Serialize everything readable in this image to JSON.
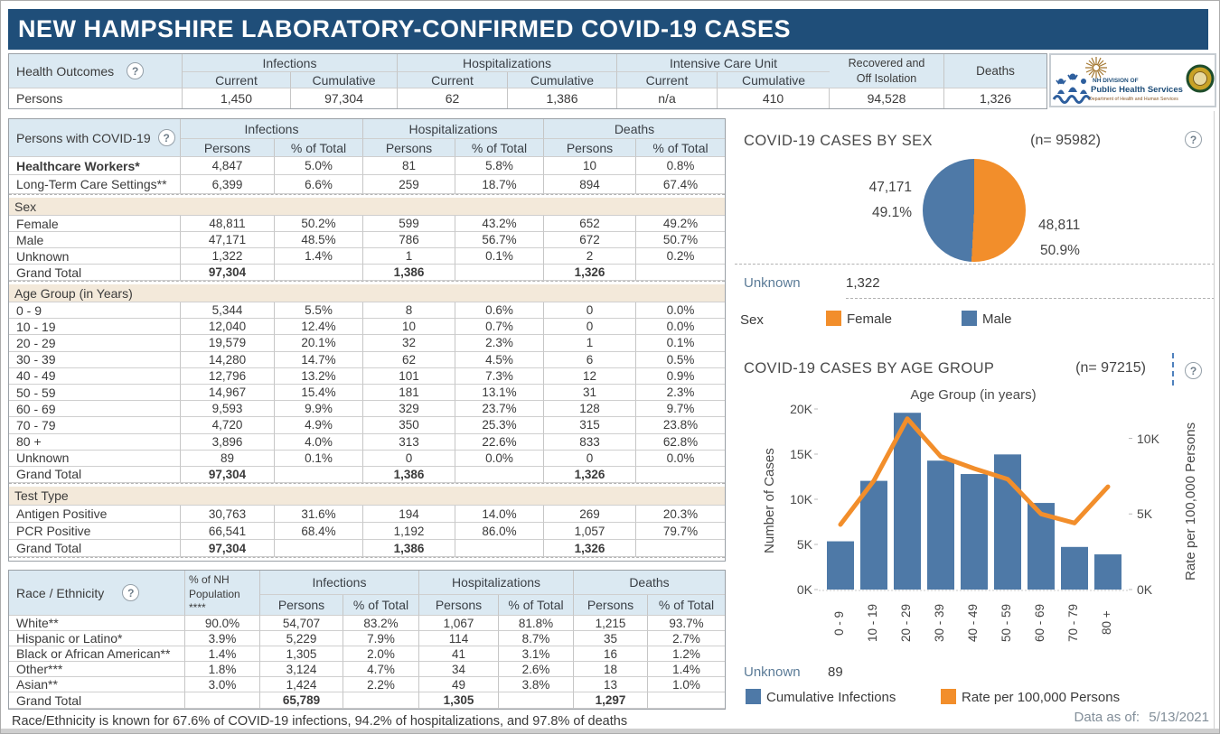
{
  "title": "NEW HAMPSHIRE LABORATORY-CONFIRMED COVID-19 CASES",
  "icons": {
    "help": "?"
  },
  "health_outcomes": {
    "label": "Health Outcomes",
    "groups": [
      "Infections",
      "Hospitalizations",
      "Intensive Care Unit"
    ],
    "sub": [
      "Current",
      "Cumulative"
    ],
    "recovered_label_lines": [
      "Recovered and",
      "Off Isolation"
    ],
    "deaths_label": "Deaths",
    "row_label": "Persons",
    "values": [
      "1,450",
      "97,304",
      "62",
      "1,386",
      "n/a",
      "410",
      "94,528",
      "1,326"
    ]
  },
  "logo": {
    "line1": "NH DIVISION OF",
    "line2": "Public Health Services",
    "line3": "Department of Health and Human Services"
  },
  "persons_table": {
    "label": "Persons with COVID-19",
    "groups": [
      "Infections",
      "Hospitalizations",
      "Deaths"
    ],
    "sub": [
      "Persons",
      "% of Total"
    ],
    "rows": [
      {
        "label": "Healthcare Workers*",
        "bold": true,
        "cells": [
          "4,847",
          "5.0%",
          "81",
          "5.8%",
          "10",
          "0.8%"
        ]
      },
      {
        "label": "Long-Term Care Settings**",
        "cells": [
          "6,399",
          "6.6%",
          "259",
          "18.7%",
          "894",
          "67.4%"
        ],
        "sep": true
      },
      {
        "section": "Sex"
      },
      {
        "label": "Female",
        "cells": [
          "48,811",
          "50.2%",
          "599",
          "43.2%",
          "652",
          "49.2%"
        ]
      },
      {
        "label": "Male",
        "cells": [
          "47,171",
          "48.5%",
          "786",
          "56.7%",
          "672",
          "50.7%"
        ]
      },
      {
        "label": "Unknown",
        "cells": [
          "1,322",
          "1.4%",
          "1",
          "0.1%",
          "2",
          "0.2%"
        ]
      },
      {
        "label": "Grand Total",
        "total": true,
        "cells": [
          "97,304",
          "",
          "1,386",
          "",
          "1,326",
          ""
        ],
        "sep": true
      },
      {
        "section": "Age Group (in Years)"
      },
      {
        "label": "0 - 9",
        "cells": [
          "5,344",
          "5.5%",
          "8",
          "0.6%",
          "0",
          "0.0%"
        ]
      },
      {
        "label": "10 - 19",
        "cells": [
          "12,040",
          "12.4%",
          "10",
          "0.7%",
          "0",
          "0.0%"
        ]
      },
      {
        "label": "20 - 29",
        "cells": [
          "19,579",
          "20.1%",
          "32",
          "2.3%",
          "1",
          "0.1%"
        ]
      },
      {
        "label": "30 - 39",
        "cells": [
          "14,280",
          "14.7%",
          "62",
          "4.5%",
          "6",
          "0.5%"
        ]
      },
      {
        "label": "40 - 49",
        "cells": [
          "12,796",
          "13.2%",
          "101",
          "7.3%",
          "12",
          "0.9%"
        ]
      },
      {
        "label": "50 - 59",
        "cells": [
          "14,967",
          "15.4%",
          "181",
          "13.1%",
          "31",
          "2.3%"
        ]
      },
      {
        "label": "60 - 69",
        "cells": [
          "9,593",
          "9.9%",
          "329",
          "23.7%",
          "128",
          "9.7%"
        ]
      },
      {
        "label": "70 - 79",
        "cells": [
          "4,720",
          "4.9%",
          "350",
          "25.3%",
          "315",
          "23.8%"
        ]
      },
      {
        "label": "80 +",
        "cells": [
          "3,896",
          "4.0%",
          "313",
          "22.6%",
          "833",
          "62.8%"
        ]
      },
      {
        "label": "Unknown",
        "cells": [
          "89",
          "0.1%",
          "0",
          "0.0%",
          "0",
          "0.0%"
        ]
      },
      {
        "label": "Grand Total",
        "total": true,
        "cells": [
          "97,304",
          "",
          "1,386",
          "",
          "1,326",
          ""
        ],
        "sep": true
      },
      {
        "section": "Test Type"
      },
      {
        "label": "Antigen Positive",
        "cells": [
          "30,763",
          "31.6%",
          "194",
          "14.0%",
          "269",
          "20.3%"
        ]
      },
      {
        "label": "PCR Positive",
        "cells": [
          "66,541",
          "68.4%",
          "1,192",
          "86.0%",
          "1,057",
          "79.7%"
        ]
      },
      {
        "label": "Grand Total",
        "total": true,
        "cells": [
          "97,304",
          "",
          "1,386",
          "",
          "1,326",
          ""
        ],
        "sep": true
      }
    ]
  },
  "race_table": {
    "label": "Race / Ethnicity",
    "pop_header_lines": [
      "% of NH",
      "Population",
      "****"
    ],
    "groups": [
      "Infections",
      "Hospitalizations",
      "Deaths"
    ],
    "sub": [
      "Persons",
      "% of Total"
    ],
    "rows": [
      {
        "label": "White**",
        "cells": [
          "90.0%",
          "54,707",
          "83.2%",
          "1,067",
          "81.8%",
          "1,215",
          "93.7%"
        ]
      },
      {
        "label": "Hispanic or Latino*",
        "cells": [
          "3.9%",
          "5,229",
          "7.9%",
          "114",
          "8.7%",
          "35",
          "2.7%"
        ]
      },
      {
        "label": "Black or African American**",
        "cells": [
          "1.4%",
          "1,305",
          "2.0%",
          "41",
          "3.1%",
          "16",
          "1.2%"
        ]
      },
      {
        "label": "Other***",
        "cells": [
          "1.8%",
          "3,124",
          "4.7%",
          "34",
          "2.6%",
          "18",
          "1.4%"
        ]
      },
      {
        "label": "Asian**",
        "cells": [
          "3.0%",
          "1,424",
          "2.2%",
          "49",
          "3.8%",
          "13",
          "1.0%"
        ]
      },
      {
        "label": "Grand Total",
        "total": true,
        "cells": [
          "",
          "65,789",
          "",
          "1,305",
          "",
          "1,297",
          ""
        ]
      }
    ]
  },
  "footnote": "Race/Ethnicity is known for 67.6% of COVID-19 infections, 94.2% of hospitalizations, and 97.8% of deaths",
  "data_as_of": {
    "label": "Data as of:",
    "value": "5/13/2021"
  },
  "chart_data": [
    {
      "type": "pie",
      "title": "COVID-19 CASES BY SEX",
      "n_label": "(n= 95982)",
      "slices": [
        {
          "label": "Female",
          "value": 48811,
          "value_text": "48,811",
          "pct_text": "50.9%",
          "color": "#f28e2b"
        },
        {
          "label": "Male",
          "value": 47171,
          "value_text": "47,171",
          "pct_text": "49.1%",
          "color": "#4e79a7"
        }
      ],
      "unknown_label": "Unknown",
      "unknown_value": "1,322",
      "legend_title": "Sex",
      "legend_position": "bottom"
    },
    {
      "type": "bar+line",
      "title": "COVID-19 CASES BY AGE GROUP",
      "n_label": "(n= 97215)",
      "axis_title": "Age Group (in years)",
      "categories": [
        "0 - 9",
        "10 - 19",
        "20 - 29",
        "30 - 39",
        "40 - 49",
        "50 - 59",
        "60 - 69",
        "70 - 79",
        "80 +"
      ],
      "series": [
        {
          "name": "Cumulative Infections",
          "type": "bar",
          "color": "#4e79a7",
          "values": [
            5344,
            12040,
            19579,
            14280,
            12796,
            14967,
            9593,
            4720,
            3896
          ]
        },
        {
          "name": "Rate per 100,000 Persons",
          "type": "line",
          "color": "#f28e2b",
          "values": [
            4300,
            7200,
            11300,
            8800,
            8000,
            7300,
            5000,
            4400,
            6800
          ]
        }
      ],
      "ylabel_left": "Number of Cases",
      "ylabel_right": "Rate per 100,000 Persons",
      "yticks_left": [
        "0K",
        "5K",
        "10K",
        "15K",
        "20K"
      ],
      "yticks_right": [
        "0K",
        "5K",
        "10K"
      ],
      "ylim_left": [
        0,
        20000
      ],
      "ylim_right": [
        0,
        11700
      ],
      "grid": false,
      "unknown_label": "Unknown",
      "unknown_value": "89"
    }
  ]
}
